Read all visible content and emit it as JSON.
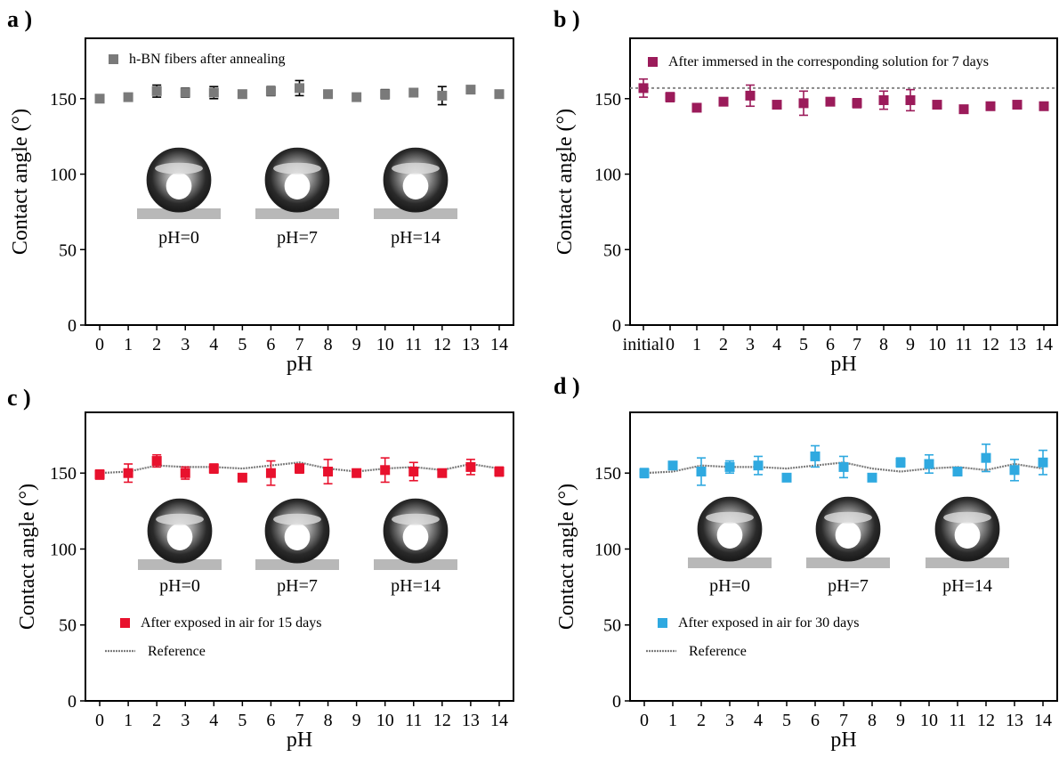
{
  "chart_data": [
    {
      "panel_label": "a )",
      "type": "scatter",
      "xlabel": "pH",
      "ylabel": "Contact angle (°)",
      "xlim": [
        -0.5,
        14.5
      ],
      "ylim": [
        0,
        190
      ],
      "categories": [
        "0",
        "1",
        "2",
        "3",
        "4",
        "5",
        "6",
        "7",
        "8",
        "9",
        "10",
        "11",
        "12",
        "13",
        "14"
      ],
      "y_ticks": [
        0,
        50,
        100,
        150
      ],
      "legend_position": "top-left",
      "color": "#7a7a7a",
      "series": [
        {
          "name": "h-BN fibers after annealing",
          "values": [
            150,
            151,
            155,
            154,
            154,
            153,
            155,
            157,
            153,
            151,
            153,
            154,
            152,
            156,
            153
          ],
          "errors": [
            1.5,
            2,
            4,
            3,
            4,
            2,
            3,
            5,
            2,
            2,
            3,
            2,
            6,
            1.5,
            1.5
          ],
          "marker": "square"
        }
      ],
      "insets": [
        "pH=0",
        "pH=7",
        "pH=14"
      ]
    },
    {
      "panel_label": "b )",
      "type": "scatter",
      "xlabel": "pH",
      "ylabel": "Contact angle (°)",
      "xlim": [
        -0.5,
        15.5
      ],
      "ylim": [
        0,
        190
      ],
      "categories": [
        "initial",
        "0",
        "1",
        "2",
        "3",
        "4",
        "5",
        "6",
        "7",
        "8",
        "9",
        "10",
        "11",
        "12",
        "13",
        "14"
      ],
      "y_ticks": [
        0,
        50,
        100,
        150
      ],
      "legend_position": "top-left",
      "color": "#9b1b5a",
      "reference_line": 157,
      "series": [
        {
          "name": "After immersed in the corresponding solution for 7 days",
          "values": [
            157,
            151,
            144,
            148,
            152,
            146,
            147,
            148,
            147,
            149,
            149,
            146,
            143,
            145,
            146,
            145
          ],
          "errors": [
            6,
            3,
            2,
            2,
            7,
            2,
            8,
            2,
            3,
            6,
            7,
            2,
            2,
            2,
            2,
            2
          ],
          "marker": "square"
        }
      ]
    },
    {
      "panel_label": "c )",
      "type": "scatter",
      "xlabel": "pH",
      "ylabel": "Contact angle (°)",
      "xlim": [
        -0.5,
        14.5
      ],
      "ylim": [
        0,
        190
      ],
      "categories": [
        "0",
        "1",
        "2",
        "3",
        "4",
        "5",
        "6",
        "7",
        "8",
        "9",
        "10",
        "11",
        "12",
        "13",
        "14"
      ],
      "y_ticks": [
        0,
        50,
        100,
        150
      ],
      "legend_position": "bottom-left",
      "color": "#e8112d",
      "series": [
        {
          "name": "After exposed in air for 15 days",
          "values": [
            149,
            150,
            158,
            150,
            153,
            147,
            150,
            153,
            151,
            150,
            152,
            151,
            150,
            154,
            151
          ],
          "errors": [
            3,
            6,
            4,
            4,
            3,
            2,
            8,
            3,
            8,
            2,
            8,
            6,
            2,
            5,
            3
          ],
          "marker": "square"
        },
        {
          "name": "Reference",
          "values": [
            150,
            151,
            155,
            154,
            154,
            153,
            155,
            157,
            153,
            151,
            153,
            154,
            152,
            156,
            153
          ],
          "marker": "line"
        }
      ],
      "insets": [
        "pH=0",
        "pH=7",
        "pH=14"
      ]
    },
    {
      "panel_label": "d )",
      "type": "scatter",
      "xlabel": "pH",
      "ylabel": "Contact angle (°)",
      "xlim": [
        -0.5,
        14.5
      ],
      "ylim": [
        0,
        190
      ],
      "categories": [
        "0",
        "1",
        "2",
        "3",
        "4",
        "5",
        "6",
        "7",
        "8",
        "9",
        "10",
        "11",
        "12",
        "13",
        "14"
      ],
      "y_ticks": [
        0,
        50,
        100,
        150
      ],
      "legend_position": "bottom-left",
      "color": "#2fa9e0",
      "series": [
        {
          "name": "After exposed in air for 30 days",
          "values": [
            150,
            155,
            151,
            154,
            155,
            147,
            161,
            154,
            147,
            157,
            156,
            151,
            160,
            152,
            157
          ],
          "errors": [
            3,
            2,
            9,
            4,
            6,
            2,
            7,
            7,
            2,
            3,
            6,
            2,
            9,
            7,
            8
          ],
          "marker": "square"
        },
        {
          "name": "Reference",
          "values": [
            150,
            151,
            155,
            154,
            154,
            153,
            155,
            157,
            153,
            151,
            153,
            154,
            152,
            156,
            153
          ],
          "marker": "line"
        }
      ],
      "insets": [
        "pH=0",
        "pH=7",
        "pH=14"
      ]
    }
  ]
}
